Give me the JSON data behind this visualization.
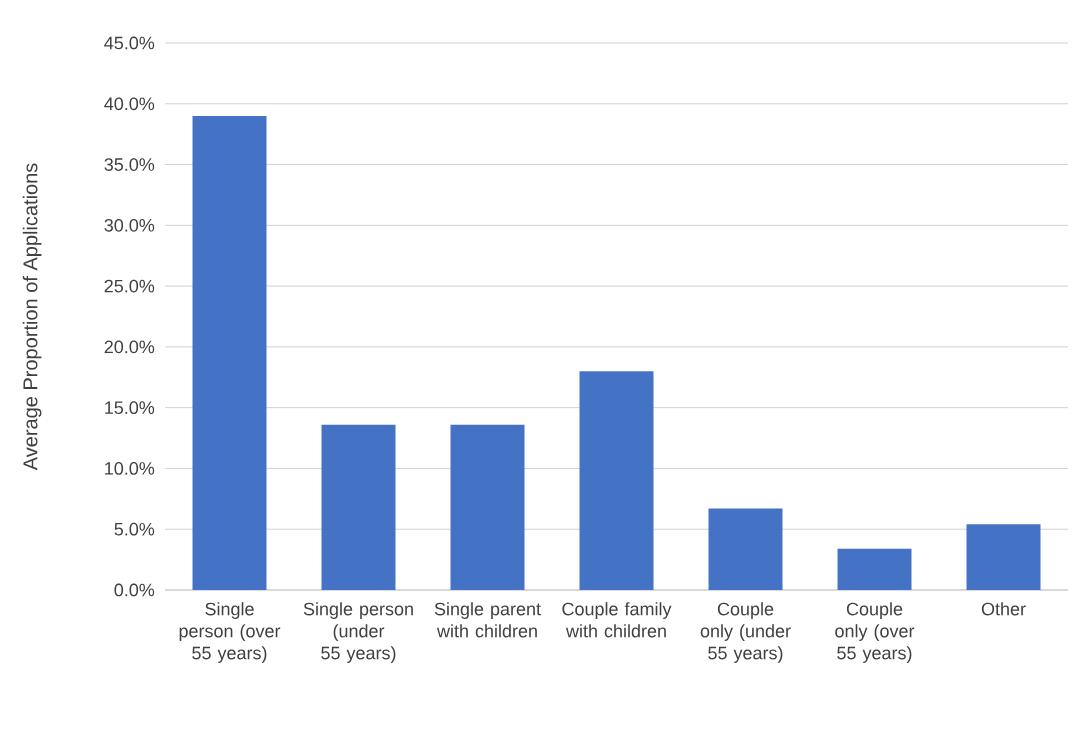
{
  "chart_data": {
    "type": "bar",
    "ylabel": "Average Proportion of Applications",
    "categories": [
      "Single person (over 55 years)",
      "Single person (under 55 years)",
      "Single parent with children",
      "Couple family with children",
      "Couple only (under 55 years)",
      "Couple only (over 55 years)",
      "Other"
    ],
    "values": [
      39.0,
      13.6,
      13.6,
      18.0,
      6.7,
      3.4,
      5.4
    ],
    "color": "#4472c4",
    "ylim": [
      0,
      45
    ],
    "yticks": [
      {
        "value": 0,
        "label": "0.0%"
      },
      {
        "value": 5,
        "label": "5.0%"
      },
      {
        "value": 10,
        "label": "10.0%"
      },
      {
        "value": 15,
        "label": "15.0%"
      },
      {
        "value": 20,
        "label": "20.0%"
      },
      {
        "value": 25,
        "label": "25.0%"
      },
      {
        "value": 30,
        "label": "30.0%"
      },
      {
        "value": 35,
        "label": "35.0%"
      },
      {
        "value": 40,
        "label": "40.0%"
      },
      {
        "value": 45,
        "label": "45.0%"
      }
    ],
    "grid": "y"
  }
}
